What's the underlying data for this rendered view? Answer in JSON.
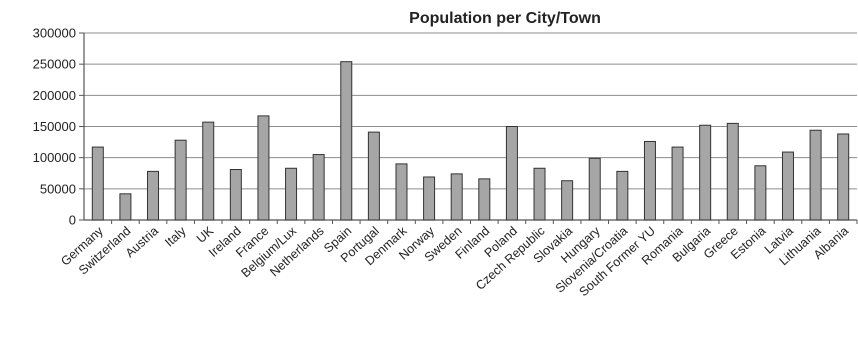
{
  "chart_data": {
    "type": "bar",
    "title": "Population per City/Town",
    "xlabel": "",
    "ylabel": "",
    "ylim": [
      0,
      300000
    ],
    "yticks": [
      0,
      50000,
      100000,
      150000,
      200000,
      250000,
      300000
    ],
    "ytick_labels": [
      "0",
      "50000",
      "100000",
      "150000",
      "200000",
      "250000",
      "300000"
    ],
    "grid": "horizontal",
    "legend": "none",
    "bar_color": "#a6a6a6",
    "bar_stroke": "#333333",
    "categories": [
      "Germany",
      "Switzerland",
      "Austria",
      "Italy",
      "UK",
      "Ireland",
      "France",
      "Belgium/Lux",
      "Netherlands",
      "Spain",
      "Portugal",
      "Denmark",
      "Norway",
      "Sweden",
      "Finland",
      "Poland",
      "Czech Republic",
      "Slovakia",
      "Hungary",
      "Slovenia/Croatia",
      "South Former YU",
      "Romania",
      "Bulgaria",
      "Greece",
      "Estonia",
      "Latvia",
      "Lithuania",
      "Albania"
    ],
    "values": [
      117000,
      42000,
      78000,
      128000,
      157000,
      81000,
      167000,
      83000,
      105000,
      254000,
      141000,
      90000,
      69000,
      74000,
      66000,
      150000,
      83000,
      63000,
      99000,
      78000,
      126000,
      117000,
      152000,
      155000,
      87000,
      109000,
      144000,
      138000
    ]
  }
}
